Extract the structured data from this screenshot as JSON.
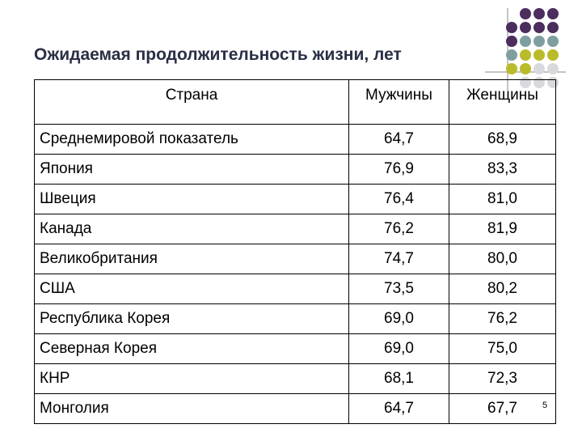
{
  "title": "Ожидаемая продолжительность жизни, лет",
  "table": {
    "header": [
      "Страна",
      "Мужчины",
      "Женщины"
    ],
    "rows": [
      [
        "Среднемировой показатель",
        "64,7",
        "68,9"
      ],
      [
        "Япония",
        "76,9",
        "83,3"
      ],
      [
        "Швеция",
        "76,4",
        "81,0"
      ],
      [
        "Канада",
        "76,2",
        "81,9"
      ],
      [
        "Великобритания",
        "74,7",
        "80,0"
      ],
      [
        "США",
        "73,5",
        "80,2"
      ],
      [
        "Республика Корея",
        "69,0",
        "76,2"
      ],
      [
        "Северная Корея",
        "69,0",
        "75,0"
      ],
      [
        "КНР",
        "68,1",
        "72,3"
      ],
      [
        "Монголия",
        "64,7",
        "67,7"
      ]
    ]
  },
  "page_number": "5"
}
